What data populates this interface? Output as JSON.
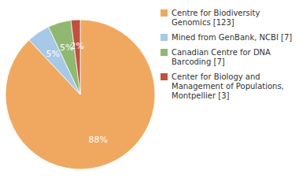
{
  "chart_data": {
    "type": "pie",
    "labels": [
      "Centre for Biodiversity\nGenomics [123]",
      "Mined from GenBank, NCBI [7]",
      "Canadian Centre for DNA\nBarcoding [7]",
      "Center for Biology and\nManagement of Populations,\nMontpellier [3]"
    ],
    "values": [
      88,
      5,
      5,
      2
    ],
    "value_labels": [
      "88%",
      "5%",
      "5%",
      "2%"
    ],
    "colors": [
      "#F0A860",
      "#A8C8E8",
      "#90B870",
      "#C05040"
    ],
    "data_labels": true
  }
}
